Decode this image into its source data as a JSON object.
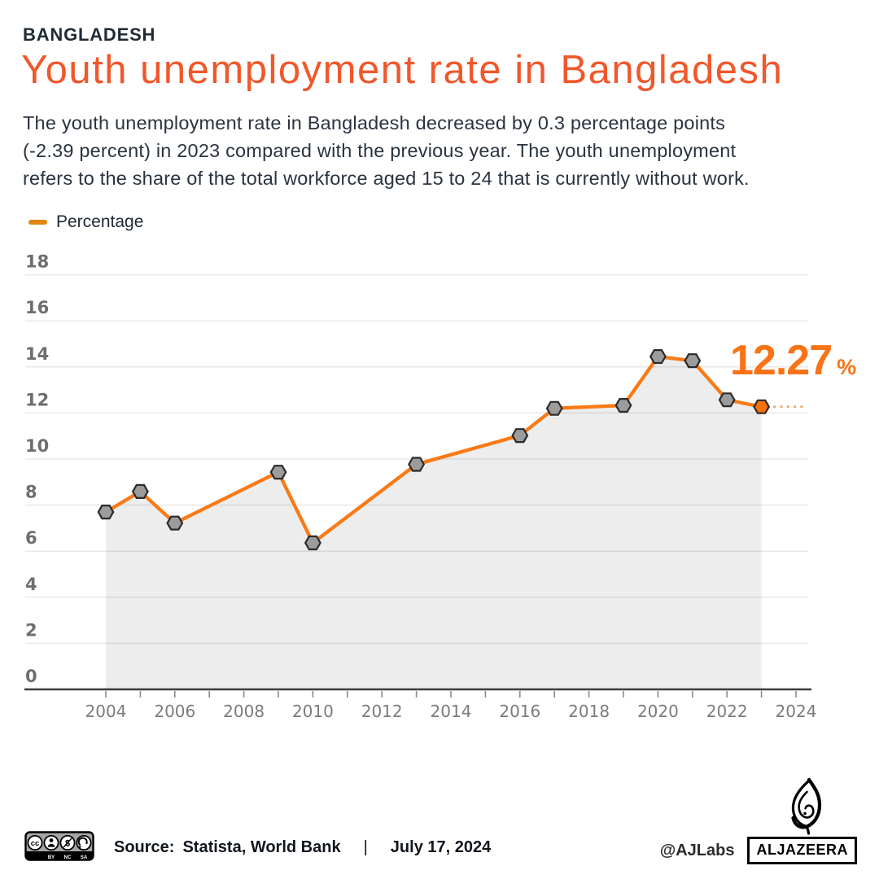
{
  "header": {
    "kicker": "BANGLADESH",
    "title": "Youth unemployment rate in Bangladesh",
    "description_lines": [
      "The youth unemployment rate in Bangladesh decreased by 0.3 percentage points",
      "(-2.39 percent) in 2023 compared with the previous year. The youth unemployment",
      "refers to the share of the total workforce aged 15 to 24 that is currently without work."
    ]
  },
  "legend": {
    "label": "Percentage",
    "swatch_color": "#E1860F"
  },
  "annotation": {
    "value": "12.27",
    "unit": "%"
  },
  "chart_data": {
    "type": "line",
    "title": "Youth unemployment rate in Bangladesh",
    "x": [
      2004,
      2005,
      2006,
      2009,
      2010,
      2013,
      2016,
      2017,
      2019,
      2020,
      2021,
      2022,
      2023
    ],
    "series": [
      {
        "name": "Percentage",
        "values": [
          7.7,
          8.59,
          7.22,
          9.43,
          6.36,
          9.77,
          11.02,
          12.2,
          12.33,
          14.45,
          14.27,
          12.57,
          12.27
        ]
      }
    ],
    "xlabel": "",
    "ylabel": "",
    "ylim": [
      0,
      18
    ],
    "yticks": [
      0,
      2,
      4,
      6,
      8,
      10,
      12,
      14,
      16,
      18
    ],
    "x_axis": {
      "start": 2004,
      "end": 2024,
      "label_step": 2
    },
    "grid": true,
    "legend_position": "top-left",
    "marker": "hexagon",
    "area_under_line": true,
    "last_point_highlighted": true,
    "last_point_label": "12.27%",
    "colors": {
      "line": "#F97A16",
      "marker": "#9C9C9C",
      "marker_stroke": "#2B2B2B",
      "marker_last": "#F87107",
      "area": "rgba(0,0,0,0.07)",
      "grid": "#E9E9E9",
      "axis": "#3C3C3C",
      "tick": "#8A8A8A",
      "y_label": "#6E6E6E",
      "x_label": "#7B7B7B",
      "leader_dots": "#F2A869",
      "annotation": "#F97316",
      "title": "#F0582B"
    }
  },
  "footer": {
    "license": {
      "cc_symbol": "cc",
      "nc_symbol": "$",
      "labels": {
        "by": "BY",
        "nc": "NC",
        "sa": "SA"
      }
    },
    "source_label": "Source:",
    "source_value": "Statista, World Bank",
    "separator": "|",
    "date": "July 17, 2024",
    "credit": "@AJLabs",
    "brand": "ALJAZEERA"
  }
}
